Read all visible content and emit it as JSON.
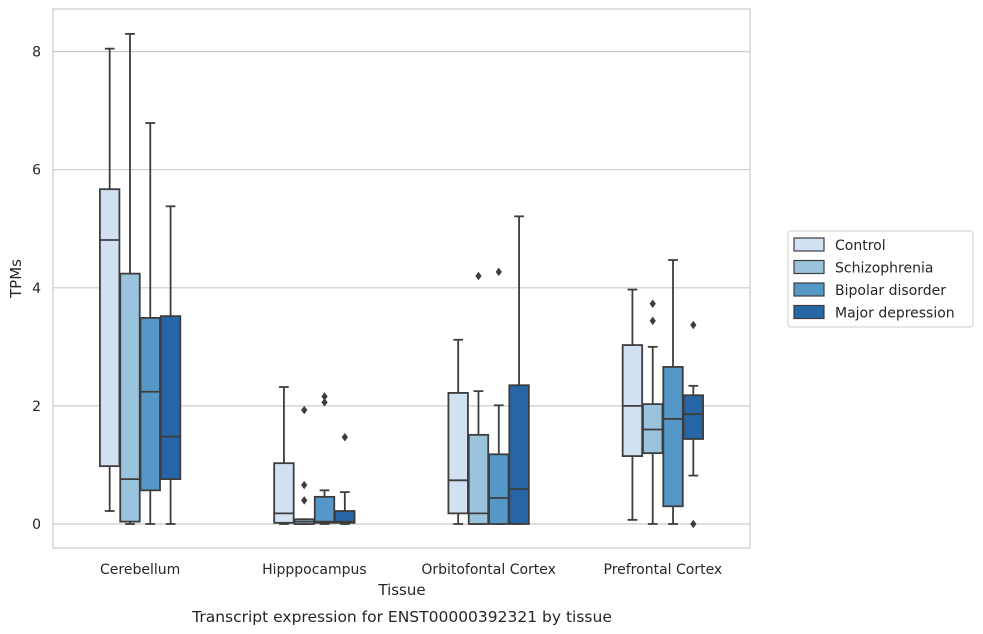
{
  "chart_data": {
    "type": "box",
    "caption": "Transcript expression for ENST00000392321 by tissue",
    "xlabel": "Tissue",
    "ylabel": "TPMs",
    "ylim": [
      -0.4,
      8.7
    ],
    "yticks": [
      0,
      2,
      4,
      6,
      8
    ],
    "grid": "horizontal",
    "legend_position": "right",
    "categories": [
      "Cerebellum",
      "Hipppocampus",
      "Orbitofontal Cortex",
      "Prefrontal Cortex"
    ],
    "series": [
      {
        "name": "Control",
        "color": "#d1e1f2",
        "boxes": [
          {
            "whislo": 0.22,
            "q1": 0.98,
            "med": 4.81,
            "q3": 5.67,
            "whishi": 8.05,
            "fliers": []
          },
          {
            "whislo": 0.0,
            "q1": 0.02,
            "med": 0.18,
            "q3": 1.03,
            "whishi": 2.32,
            "fliers": []
          },
          {
            "whislo": 0.0,
            "q1": 0.18,
            "med": 0.74,
            "q3": 2.22,
            "whishi": 3.12,
            "fliers": []
          },
          {
            "whislo": 0.07,
            "q1": 1.15,
            "med": 2.0,
            "q3": 3.03,
            "whishi": 3.97,
            "fliers": []
          }
        ]
      },
      {
        "name": "Schizophrenia",
        "color": "#9ac3de",
        "boxes": [
          {
            "whislo": 0.0,
            "q1": 0.04,
            "med": 0.76,
            "q3": 4.24,
            "whishi": 8.3,
            "fliers": []
          },
          {
            "whislo": 0.0,
            "q1": 0.0,
            "med": 0.04,
            "q3": 0.08,
            "whishi": 0.08,
            "fliers": [
              0.4,
              0.66,
              1.93
            ]
          },
          {
            "whislo": 0.0,
            "q1": 0.0,
            "med": 0.18,
            "q3": 1.51,
            "whishi": 2.25,
            "fliers": [
              4.2
            ]
          },
          {
            "whislo": 0.0,
            "q1": 1.2,
            "med": 1.6,
            "q3": 2.03,
            "whishi": 3.0,
            "fliers": [
              3.44,
              3.73
            ]
          }
        ]
      },
      {
        "name": "Bipolar disorder",
        "color": "#5598c8",
        "boxes": [
          {
            "whislo": 0.0,
            "q1": 0.57,
            "med": 2.24,
            "q3": 3.49,
            "whishi": 6.79,
            "fliers": []
          },
          {
            "whislo": 0.0,
            "q1": 0.02,
            "med": 0.04,
            "q3": 0.46,
            "whishi": 0.57,
            "fliers": [
              2.06,
              2.16
            ]
          },
          {
            "whislo": 0.0,
            "q1": 0.0,
            "med": 0.44,
            "q3": 1.18,
            "whishi": 2.01,
            "fliers": [
              4.27
            ]
          },
          {
            "whislo": 0.0,
            "q1": 0.3,
            "med": 1.78,
            "q3": 2.66,
            "whishi": 4.47,
            "fliers": []
          }
        ]
      },
      {
        "name": "Major depression",
        "color": "#2766a6",
        "boxes": [
          {
            "whislo": 0.0,
            "q1": 0.76,
            "med": 1.48,
            "q3": 3.52,
            "whishi": 5.38,
            "fliers": []
          },
          {
            "whislo": 0.0,
            "q1": 0.02,
            "med": 0.04,
            "q3": 0.22,
            "whishi": 0.54,
            "fliers": [
              1.47
            ]
          },
          {
            "whislo": 0.0,
            "q1": 0.0,
            "med": 0.59,
            "q3": 2.35,
            "whishi": 5.21,
            "fliers": []
          },
          {
            "whislo": 0.82,
            "q1": 1.44,
            "med": 1.86,
            "q3": 2.18,
            "whishi": 2.34,
            "fliers": [
              0.0,
              3.37
            ]
          }
        ]
      }
    ]
  }
}
